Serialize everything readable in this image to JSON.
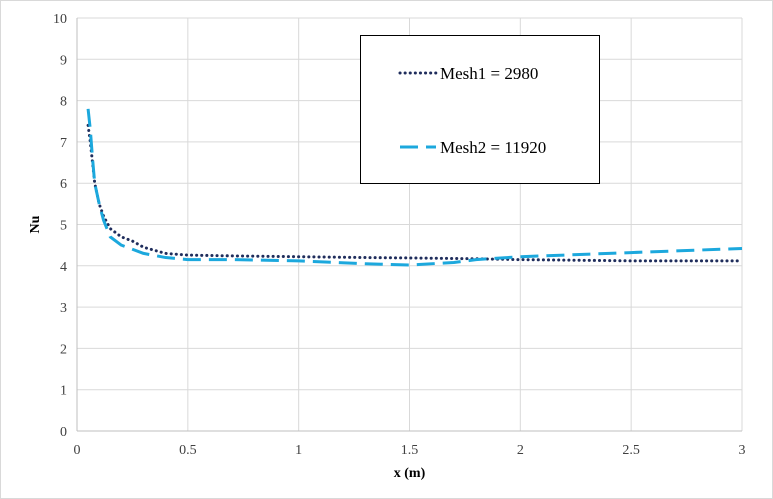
{
  "chart_data": {
    "type": "line",
    "title": "",
    "xlabel": "x (m)",
    "ylabel": "Nu",
    "xlim": [
      0,
      3
    ],
    "ylim": [
      0,
      10
    ],
    "x_ticks": [
      "0",
      "0.5",
      "1",
      "1.5",
      "2",
      "2.5",
      "3"
    ],
    "y_ticks": [
      "0",
      "1",
      "2",
      "3",
      "4",
      "5",
      "6",
      "7",
      "8",
      "9",
      "10"
    ],
    "grid": true,
    "legend_position": "top-right",
    "series": [
      {
        "name": "Mesh1 = 2980",
        "style": "dotted",
        "color": "#1f2d5c",
        "x": [
          0.05,
          0.06,
          0.07,
          0.08,
          0.1,
          0.12,
          0.15,
          0.2,
          0.25,
          0.3,
          0.4,
          0.5,
          0.7,
          1.0,
          1.3,
          1.5,
          1.8,
          2.0,
          2.5,
          3.0
        ],
        "y": [
          7.4,
          7.0,
          6.5,
          6.0,
          5.5,
          5.2,
          4.9,
          4.7,
          4.6,
          4.45,
          4.3,
          4.26,
          4.24,
          4.22,
          4.2,
          4.19,
          4.17,
          4.15,
          4.12,
          4.12
        ]
      },
      {
        "name": "Mesh2 = 11920",
        "style": "dashed",
        "color": "#1ca8dd",
        "x": [
          0.05,
          0.06,
          0.07,
          0.08,
          0.1,
          0.12,
          0.15,
          0.2,
          0.25,
          0.3,
          0.4,
          0.5,
          0.7,
          1.0,
          1.3,
          1.5,
          1.7,
          1.8,
          2.0,
          2.3,
          2.5,
          2.8,
          3.0
        ],
        "y": [
          7.8,
          7.3,
          6.6,
          6.0,
          5.5,
          5.1,
          4.7,
          4.5,
          4.4,
          4.3,
          4.2,
          4.15,
          4.15,
          4.12,
          4.05,
          4.02,
          4.08,
          4.15,
          4.22,
          4.28,
          4.32,
          4.38,
          4.42
        ]
      }
    ]
  }
}
